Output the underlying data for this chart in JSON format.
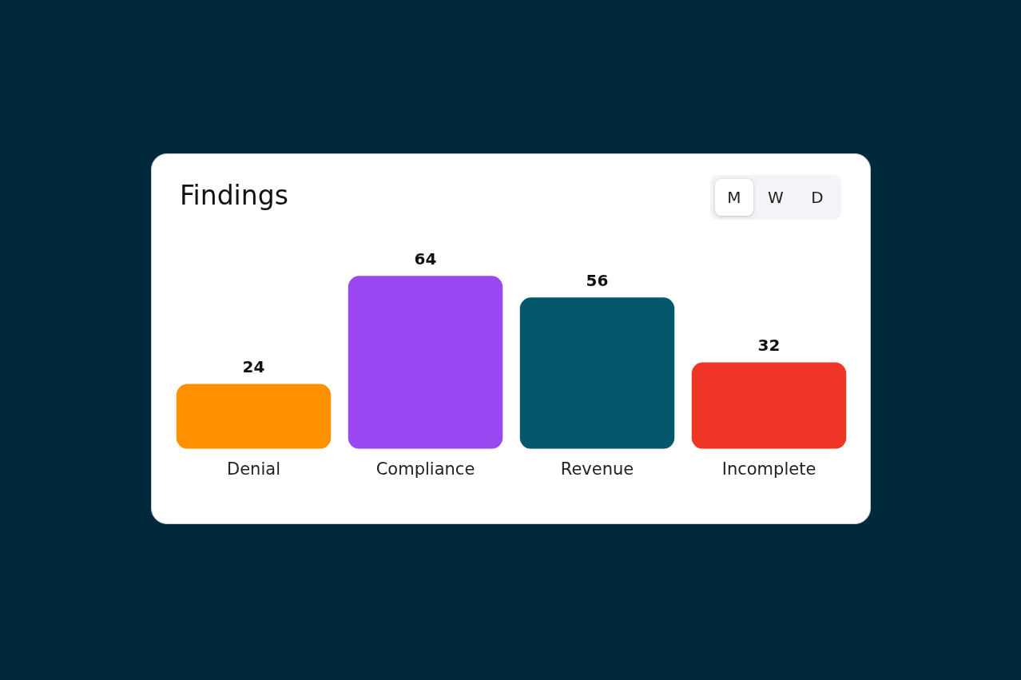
{
  "chart_data": {
    "type": "bar",
    "title": "Findings",
    "categories": [
      "Denial",
      "Compliance",
      "Revenue",
      "Incomplete"
    ],
    "values": [
      24,
      64,
      56,
      32
    ],
    "colors": [
      "#ff9100",
      "#9b47f2",
      "#05586c",
      "#ef3526"
    ],
    "data_labels": true,
    "grid": false,
    "legend": false,
    "annotations": [
      "M",
      "W",
      "D"
    ]
  }
}
